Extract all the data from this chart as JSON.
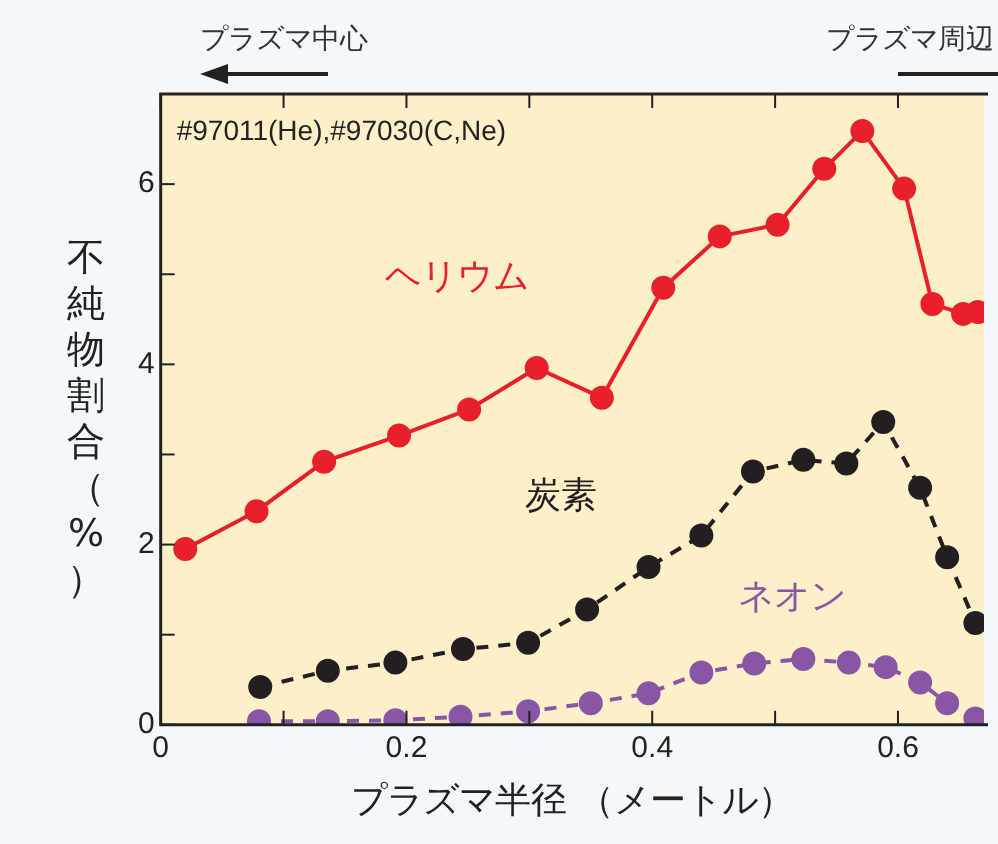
{
  "chart_data": {
    "type": "line",
    "xlabel": "プラズマ半径 （メートル）",
    "ylabel": "不純物割合（%）",
    "annotations": [
      "#97011(He),#97030(C,Ne)",
      "プラズマ中心",
      "プラズマ周辺"
    ],
    "xlim": [
      0,
      0.67
    ],
    "xticks": [
      0,
      {
        "value": 0.1,
        "label": null
      },
      0.2,
      {
        "value": 0.3,
        "label": null
      },
      0.4,
      {
        "value": 0.5,
        "label": null
      },
      0.6
    ],
    "ylim": [
      0,
      7
    ],
    "yticks": [
      0,
      {
        "value": 1,
        "label": null
      },
      2,
      {
        "value": 3,
        "label": null
      },
      4,
      {
        "value": 5,
        "label": null
      },
      6
    ],
    "grid": false,
    "legend": false,
    "marker": "circle",
    "series": [
      {
        "name": "ヘリウム",
        "color": "#e8202a",
        "line_style": "solid",
        "x": [
          0.02,
          0.078,
          0.133,
          0.194,
          0.251,
          0.306,
          0.359,
          0.409,
          0.455,
          0.502,
          0.54,
          0.571,
          0.605,
          0.628,
          0.653,
          0.665
        ],
        "values": [
          1.95,
          2.37,
          2.92,
          3.21,
          3.5,
          3.96,
          3.63,
          4.85,
          5.42,
          5.55,
          6.17,
          6.59,
          5.95,
          4.67,
          4.56,
          4.58
        ]
      },
      {
        "name": "炭素",
        "color": "#231f20",
        "line_style": "dashed",
        "x": [
          0.081,
          0.136,
          0.191,
          0.246,
          0.299,
          0.347,
          0.397,
          0.44,
          0.482,
          0.523,
          0.558,
          0.588,
          0.618,
          0.64,
          0.663
        ],
        "values": [
          0.42,
          0.6,
          0.69,
          0.84,
          0.91,
          1.28,
          1.75,
          2.1,
          2.81,
          2.94,
          2.9,
          3.36,
          2.63,
          1.86,
          1.13
        ]
      },
      {
        "name": "ネオン",
        "color": "#8b55a5",
        "line_style": "dashed",
        "x": [
          0.08,
          0.136,
          0.191,
          0.244,
          0.299,
          0.35,
          0.397,
          0.44,
          0.483,
          0.523,
          0.56,
          0.59,
          0.618,
          0.64,
          0.663
        ],
        "values": [
          0.04,
          0.04,
          0.05,
          0.09,
          0.15,
          0.24,
          0.35,
          0.58,
          0.68,
          0.73,
          0.69,
          0.64,
          0.47,
          0.24,
          0.07
        ]
      }
    ]
  }
}
